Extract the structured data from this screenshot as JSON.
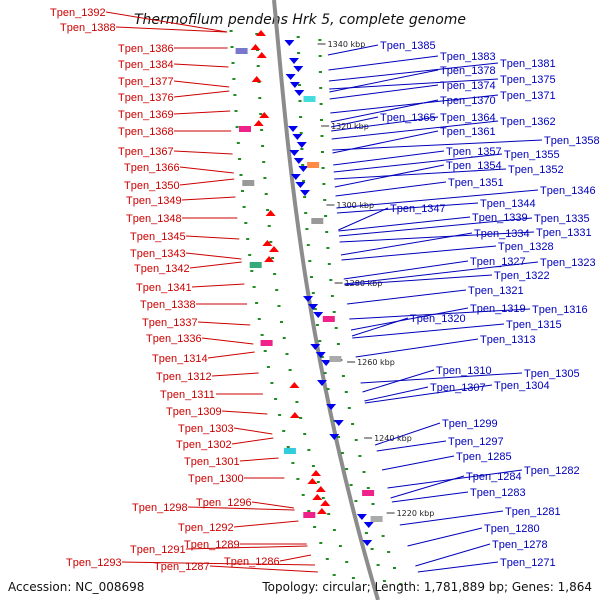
{
  "title": "Thermofilum pendens Hrk 5, complete genome",
  "accession_text": "Accession: NC_008698",
  "summary_text": "Topology: circular; Length: 1,781,889 bp; Genes: 1,864",
  "colors": {
    "left_label": "#cc0000",
    "right_label": "#0000bb",
    "reverse_strand": "#ff0000",
    "forward_strand": "#0000ee",
    "backbone": "#8c8c8c",
    "tick": "#228b22"
  },
  "scale_ticks": [
    "1340 kbp",
    "1320 kbp",
    "1300 kbp",
    "1280 kbp",
    "1260 kbp",
    "1240 kbp",
    "1220 kbp"
  ],
  "left_labels": [
    "Tpen_1392",
    "Tpen_1388",
    "Tpen_1386",
    "Tpen_1384",
    "Tpen_1377",
    "Tpen_1376",
    "Tpen_1369",
    "Tpen_1368",
    "Tpen_1367",
    "Tpen_1366",
    "Tpen_1350",
    "Tpen_1349",
    "Tpen_1348",
    "Tpen_1345",
    "Tpen_1343",
    "Tpen_1342",
    "Tpen_1341",
    "Tpen_1338",
    "Tpen_1337",
    "Tpen_1336",
    "Tpen_1314",
    "Tpen_1312",
    "Tpen_1311",
    "Tpen_1309",
    "Tpen_1303",
    "Tpen_1302",
    "Tpen_1301",
    "Tpen_1300",
    "Tpen_1298",
    "Tpen_1296",
    "Tpen_1292",
    "Tpen_1291",
    "Tpen_1289",
    "Tpen_1293",
    "Tpen_1287",
    "Tpen_1286"
  ],
  "right_labels": [
    "Tpen_1385",
    "Tpen_1383",
    "Tpen_1381",
    "Tpen_1378",
    "Tpen_1375",
    "Tpen_1374",
    "Tpen_1371",
    "Tpen_1370",
    "Tpen_1365",
    "Tpen_1364",
    "Tpen_1362",
    "Tpen_1361",
    "Tpen_1358",
    "Tpen_1357",
    "Tpen_1355",
    "Tpen_1354",
    "Tpen_1352",
    "Tpen_1351",
    "Tpen_1346",
    "Tpen_1347",
    "Tpen_1344",
    "Tpen_1339",
    "Tpen_1335",
    "Tpen_1334",
    "Tpen_1331",
    "Tpen_1328",
    "Tpen_1327",
    "Tpen_1323",
    "Tpen_1322",
    "Tpen_1321",
    "Tpen_1320",
    "Tpen_1319",
    "Tpen_1316",
    "Tpen_1315",
    "Tpen_1313",
    "Tpen_1310",
    "Tpen_1305",
    "Tpen_1307",
    "Tpen_1304",
    "Tpen_1299",
    "Tpen_1297",
    "Tpen_1285",
    "Tpen_1282",
    "Tpen_1284",
    "Tpen_1283",
    "Tpen_1281",
    "Tpen_1280",
    "Tpen_1278",
    "Tpen_1271"
  ]
}
